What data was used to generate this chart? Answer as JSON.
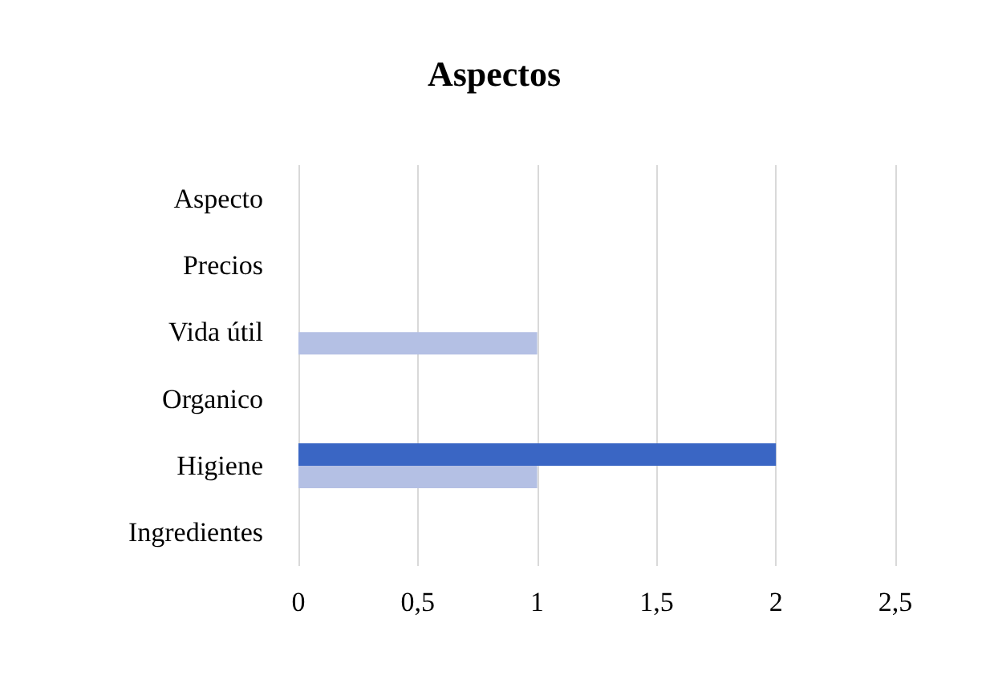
{
  "chart_data": {
    "type": "bar",
    "orientation": "horizontal",
    "title": "Aspectos",
    "categories": [
      "Aspecto",
      "Precios",
      "Vida útil",
      "Organico",
      "Higiene",
      "Ingredientes"
    ],
    "series": [
      {
        "color": "#3a66c4",
        "values": [
          0,
          0,
          0,
          0,
          2,
          0
        ]
      },
      {
        "color": "#b4c0e4",
        "values": [
          0,
          0,
          1,
          0,
          1,
          0
        ]
      }
    ],
    "xlim": [
      0,
      2.5
    ],
    "xticks": [
      0,
      {
        "value": 0.5,
        "label": "0,5"
      },
      1,
      {
        "value": 1.5,
        "label": "1,5"
      },
      2,
      {
        "value": 2.5,
        "label": "2,5"
      }
    ],
    "grid": "x"
  }
}
